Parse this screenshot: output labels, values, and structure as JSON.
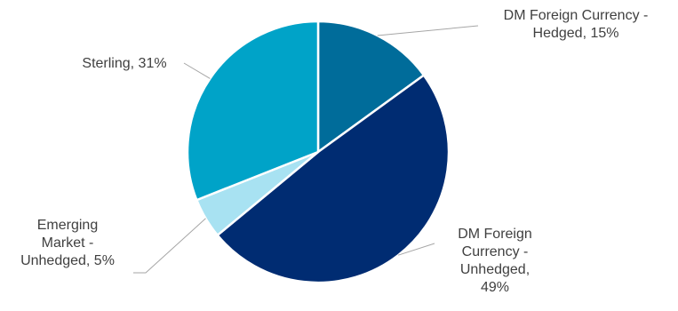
{
  "chart_data": {
    "type": "pie",
    "title": "",
    "legend": "none",
    "start_angle_deg": 0,
    "direction": "clockwise",
    "slices": [
      {
        "name": "DM Foreign Currency - Hedged",
        "value": 15,
        "label_lines": [
          "DM Foreign Currency -",
          "Hedged, 15%"
        ],
        "color": "#006C9A"
      },
      {
        "name": "DM Foreign Currency - Unhedged",
        "value": 49,
        "label_lines": [
          "DM Foreign",
          "Currency -",
          "Unhedged,",
          "49%"
        ],
        "color": "#002C72"
      },
      {
        "name": "Emerging Market - Unhedged",
        "value": 5,
        "label_lines": [
          "Emerging",
          "Market -",
          "Unhedged, 5%"
        ],
        "color": "#A8E2F2"
      },
      {
        "name": "Sterling",
        "value": 31,
        "label_lines": [
          "Sterling, 31%"
        ],
        "color": "#00A3C8"
      }
    ],
    "colors": {
      "leader_line": "#A6A6A6",
      "label_text": "#404040",
      "slice_border": "#FFFFFF"
    }
  }
}
